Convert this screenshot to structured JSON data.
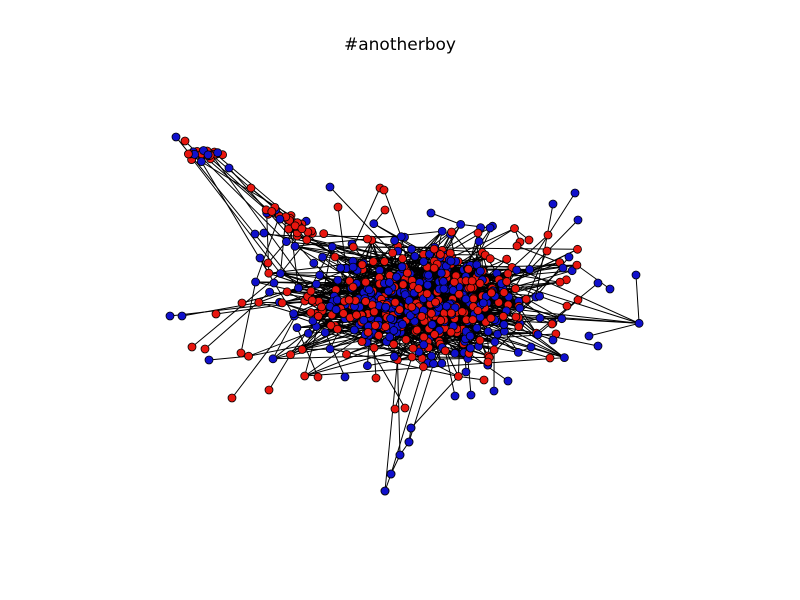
{
  "figure": {
    "title": "#anotherboy"
  },
  "graph": {
    "node_colors": {
      "red": "#e8160f",
      "blue": "#1010cc",
      "edge": "#000000",
      "outline": "#000000"
    }
  }
}
